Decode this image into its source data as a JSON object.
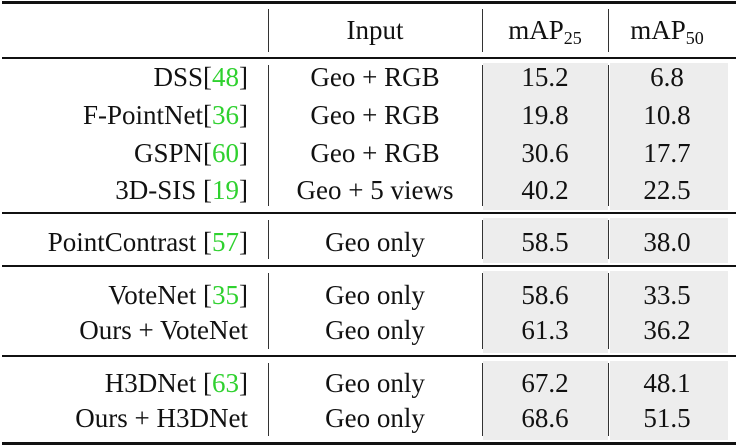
{
  "header": {
    "input": "Input",
    "map25": {
      "text": "mAP",
      "sub": "25"
    },
    "map50": {
      "text": "mAP",
      "sub": "50"
    }
  },
  "groups": [
    [
      {
        "method": {
          "name": "DSS[",
          "cite": "48",
          "end": "]"
        },
        "input": "Geo + RGB",
        "map25": "15.2",
        "map50": "6.8"
      },
      {
        "method": {
          "name": "F-PointNet[",
          "cite": "36",
          "end": "]"
        },
        "input": "Geo + RGB",
        "map25": "19.8",
        "map50": "10.8"
      },
      {
        "method": {
          "name": "GSPN[",
          "cite": "60",
          "end": "]"
        },
        "input": "Geo + RGB",
        "map25": "30.6",
        "map50": "17.7"
      },
      {
        "method": {
          "name": "3D-SIS [",
          "cite": "19",
          "end": "]"
        },
        "input": "Geo + 5 views",
        "map25": "40.2",
        "map50": "22.5"
      }
    ],
    [
      {
        "method": {
          "name": "PointContrast [",
          "cite": "57",
          "end": "]"
        },
        "input": "Geo only",
        "map25": "58.5",
        "map50": "38.0"
      }
    ],
    [
      {
        "method": {
          "name": "VoteNet [",
          "cite": "35",
          "end": "]"
        },
        "input": "Geo only",
        "map25": "58.6",
        "map50": "33.5"
      },
      {
        "method": {
          "name": "Ours + VoteNet"
        },
        "input": "Geo only",
        "map25": "61.3",
        "map50": "36.2"
      }
    ],
    [
      {
        "method": {
          "name": "H3DNet [",
          "cite": "63",
          "end": "]"
        },
        "input": "Geo only",
        "map25": "67.2",
        "map50": "48.1"
      },
      {
        "method": {
          "name": "Ours + H3DNet"
        },
        "input": "Geo only",
        "map25": "68.6",
        "map50": "51.5"
      }
    ]
  ]
}
